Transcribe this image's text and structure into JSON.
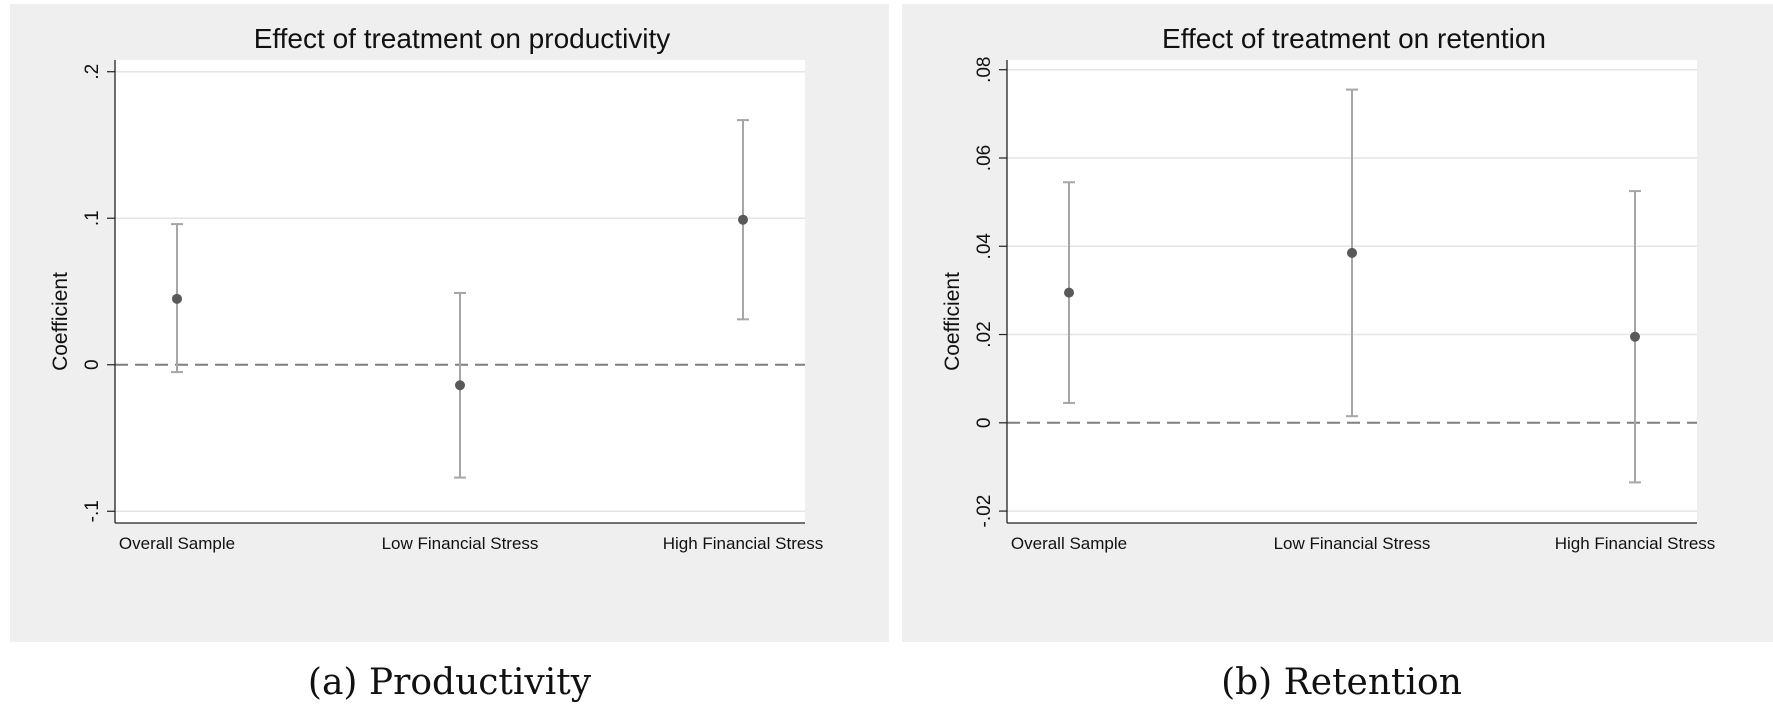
{
  "chart_data": [
    {
      "type": "scatter",
      "subtype": "coefficient-plot-with-ci",
      "title": "Effect of treatment on productivity",
      "caption": "(a) Productivity",
      "ylabel": "Coefficient",
      "xlabel": "",
      "categories": [
        "Overall Sample",
        "Low Financial Stress",
        "High Financial Stress"
      ],
      "points": [
        {
          "category": "Overall Sample",
          "coef": 0.045,
          "ci_low": -0.005,
          "ci_high": 0.096
        },
        {
          "category": "Low Financial Stress",
          "coef": -0.014,
          "ci_low": -0.077,
          "ci_high": 0.049
        },
        {
          "category": "High Financial Stress",
          "coef": 0.099,
          "ci_low": 0.031,
          "ci_high": 0.167
        }
      ],
      "yticks": [
        -0.1,
        0,
        0.1,
        0.2
      ],
      "ytick_labels": [
        "-.1",
        "0",
        ".1",
        ".2"
      ],
      "ylim": [
        -0.108,
        0.208
      ],
      "reference_line": 0,
      "grid": true,
      "colors": {
        "point": "#595959",
        "ci": "#a6a6a6",
        "grid": "#e4e4e4",
        "ref": "#7f7f7f"
      }
    },
    {
      "type": "scatter",
      "subtype": "coefficient-plot-with-ci",
      "title": "Effect of treatment on retention",
      "caption": "(b) Retention",
      "ylabel": "Coefficient",
      "xlabel": "",
      "categories": [
        "Overall Sample",
        "Low Financial Stress",
        "High Financial Stress"
      ],
      "points": [
        {
          "category": "Overall Sample",
          "coef": 0.0295,
          "ci_low": 0.0045,
          "ci_high": 0.0545
        },
        {
          "category": "Low Financial Stress",
          "coef": 0.0385,
          "ci_low": 0.0015,
          "ci_high": 0.0755
        },
        {
          "category": "High Financial Stress",
          "coef": 0.0195,
          "ci_low": -0.0135,
          "ci_high": 0.0525
        }
      ],
      "yticks": [
        -0.02,
        0,
        0.02,
        0.04,
        0.06,
        0.08
      ],
      "ytick_labels": [
        "-.02",
        "0",
        ".02",
        ".04",
        ".06",
        ".08"
      ],
      "ylim": [
        -0.0227,
        0.0822
      ],
      "reference_line": 0,
      "grid": true,
      "colors": {
        "point": "#595959",
        "ci": "#a6a6a6",
        "grid": "#e4e4e4",
        "ref": "#7f7f7f"
      }
    }
  ]
}
